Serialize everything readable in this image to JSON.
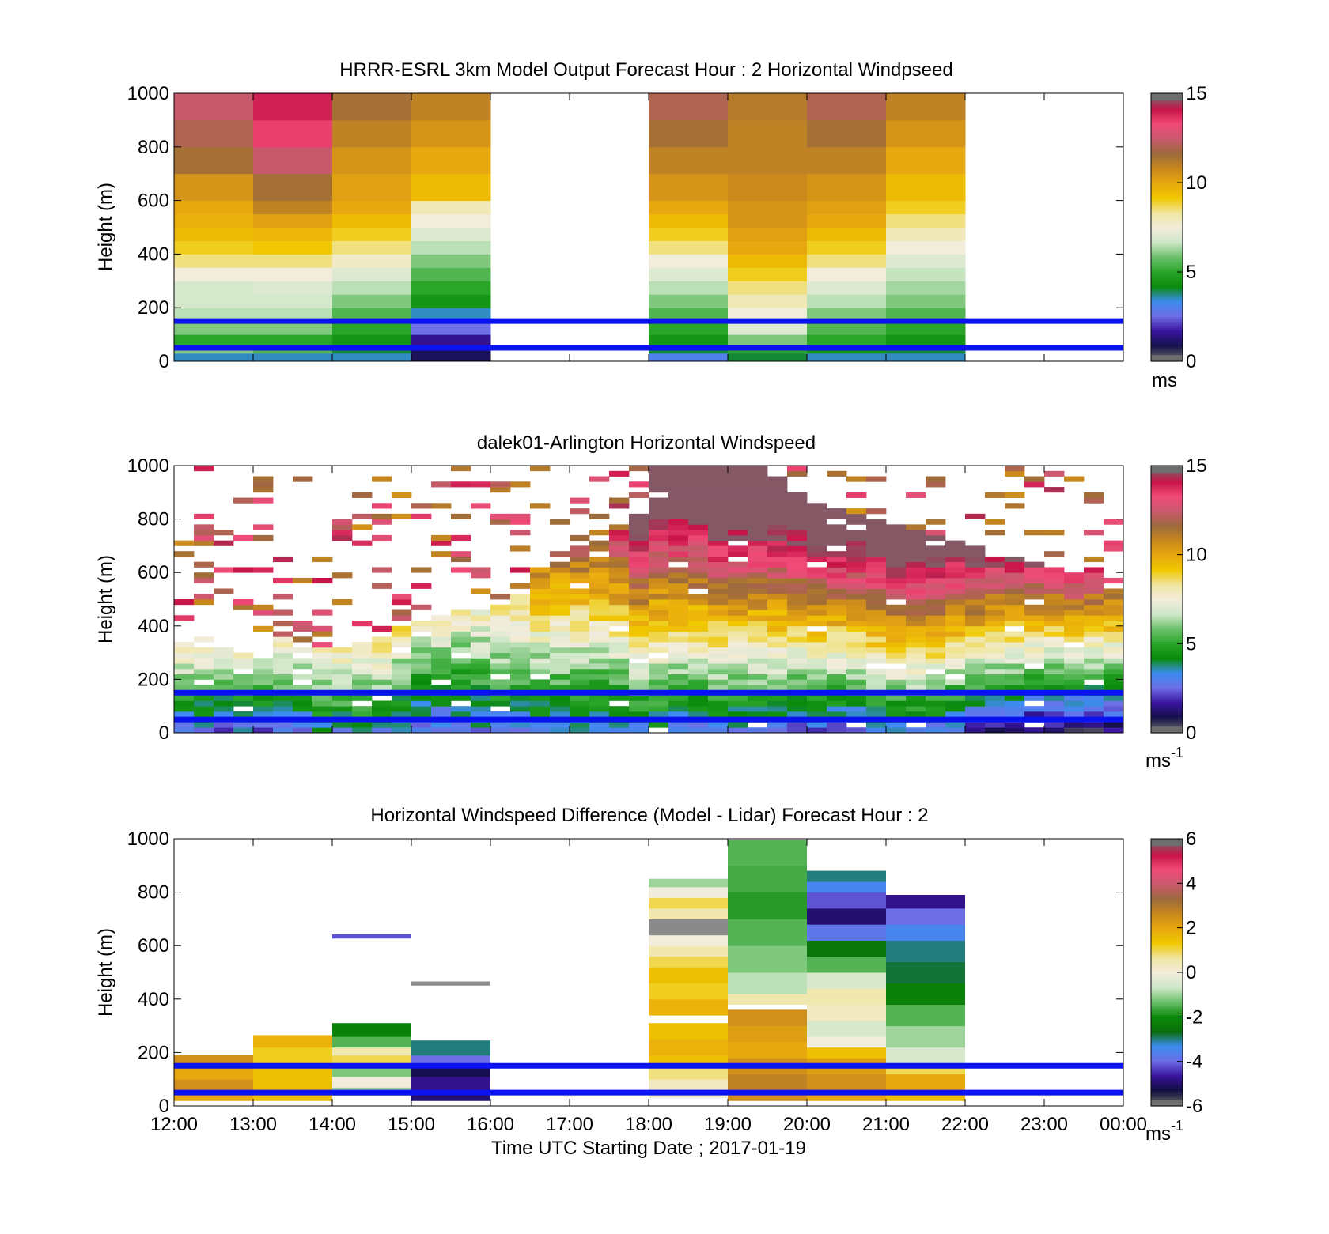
{
  "colors": {
    "threshold_line": "#0a12f0",
    "model_cmap": [
      "#6e6e6e",
      "#14104a",
      "#3a14a0",
      "#6e6ee6",
      "#3c8cf0",
      "#0a8a0a",
      "#2aa52a",
      "#6cc06c",
      "#cfe7c8",
      "#f2ecdc",
      "#f0e6a0",
      "#f0c800",
      "#e8a810",
      "#c8881e",
      "#9c6a3c",
      "#c85a6e",
      "#f04a78",
      "#c81448",
      "#6e6e6e"
    ],
    "diff_cmap": [
      "#6e6e6e",
      "#0e0c3c",
      "#3a14a0",
      "#6e6ee6",
      "#3c8cf0",
      "#0a6e0a",
      "#0a8a0a",
      "#6cc06c",
      "#cfe7c8",
      "#f2ecdc",
      "#f0e6a0",
      "#f0c800",
      "#e8a810",
      "#c8881e",
      "#9c6a3c",
      "#c85a6e",
      "#f04a78",
      "#c81448",
      "#6e6e6e"
    ]
  },
  "chart_data": [
    {
      "type": "heatmap",
      "title": "HRRR-ESRL 3km Model Output   Forecast Hour : 2 Horizontal Windpseed",
      "xlabel": "",
      "ylabel": "Height (m)",
      "ylim": [
        0,
        1000
      ],
      "yticks": [
        "0",
        "200",
        "400",
        "600",
        "800",
        "1000"
      ],
      "xticks_hours": [
        12,
        13,
        14,
        15,
        16,
        17,
        18,
        19,
        20,
        21,
        22,
        23,
        24
      ],
      "xlim_hours": [
        12,
        24
      ],
      "clim": [
        0,
        15
      ],
      "cbar_ticks": [
        "0",
        "5",
        "10",
        "15"
      ],
      "cbar_unit": "ms",
      "threshold_lines_m": [
        50,
        150
      ],
      "hour_columns_start": [
        12,
        13,
        14,
        15,
        18,
        19,
        20,
        21
      ],
      "height_bins_m": [
        0,
        30,
        50,
        100,
        150,
        200,
        250,
        300,
        350,
        400,
        450,
        500,
        550,
        600,
        700,
        800,
        900,
        1000
      ],
      "speed_profiles_ms": [
        [
          3.5,
          6.0,
          5.0,
          6.0,
          6.5,
          6.8,
          6.8,
          7.5,
          8.5,
          9.0,
          9.5,
          9.8,
          10.0,
          10.5,
          11.5,
          12.0,
          12.5
        ],
        [
          3.5,
          5.5,
          5.0,
          6.0,
          6.5,
          6.8,
          7.0,
          7.5,
          8.5,
          9.2,
          9.6,
          10.2,
          11.0,
          11.5,
          12.5,
          13.5,
          14.0
        ],
        [
          3.5,
          4.0,
          4.5,
          5.0,
          5.5,
          6.0,
          6.5,
          7.0,
          7.8,
          8.5,
          9.0,
          9.5,
          10.0,
          10.2,
          10.5,
          11.0,
          11.5
        ],
        [
          1.0,
          1.0,
          1.5,
          2.5,
          3.5,
          4.5,
          5.0,
          5.5,
          6.0,
          6.5,
          7.0,
          7.5,
          8.0,
          9.5,
          10.0,
          10.5,
          11.0
        ],
        [
          3.0,
          4.0,
          4.5,
          5.0,
          5.5,
          6.0,
          6.5,
          7.0,
          7.5,
          8.5,
          9.0,
          9.5,
          10.0,
          10.5,
          11.0,
          11.5,
          12.0
        ],
        [
          4.0,
          5.0,
          6.0,
          7.0,
          7.5,
          8.0,
          8.5,
          9.0,
          9.5,
          10.0,
          10.2,
          10.5,
          10.5,
          10.8,
          11.0,
          11.0,
          11.2
        ],
        [
          3.5,
          4.5,
          5.0,
          5.5,
          6.0,
          6.5,
          7.0,
          7.5,
          8.5,
          9.0,
          9.5,
          10.0,
          10.2,
          10.5,
          11.0,
          11.5,
          12.0
        ],
        [
          3.5,
          4.0,
          4.5,
          5.0,
          5.5,
          6.0,
          6.3,
          6.6,
          7.0,
          7.5,
          8.0,
          8.5,
          9.0,
          9.5,
          10.0,
          10.5,
          11.0
        ]
      ]
    },
    {
      "type": "heatmap",
      "title": "dalek01-Arlington  Horizontal Windspeed",
      "xlabel": "",
      "ylabel": "Height (m)",
      "ylim": [
        0,
        1000
      ],
      "yticks": [
        "0",
        "200",
        "400",
        "600",
        "800",
        "1000"
      ],
      "xticks_hours": [
        12,
        13,
        14,
        15,
        16,
        17,
        18,
        19,
        20,
        21,
        22,
        23,
        24
      ],
      "xlim_hours": [
        12,
        24
      ],
      "clim": [
        0,
        15
      ],
      "cbar_ticks": [
        "0",
        "5",
        "10",
        "15"
      ],
      "cbar_unit": "ms",
      "cbar_unit_sup": "-1",
      "threshold_lines_m": [
        50,
        150
      ],
      "time_step_hours": 0.25,
      "height_step_m": 20,
      "data_top_m": [
        340,
        360,
        320,
        300,
        280,
        360,
        320,
        320,
        320,
        340,
        360,
        400,
        420,
        440,
        460,
        460,
        480,
        520,
        620,
        640,
        680,
        720,
        760,
        820,
        1000,
        1000,
        1000,
        1000,
        1000,
        1000,
        960,
        900,
        860,
        840,
        820,
        800,
        780,
        760,
        740,
        720,
        700,
        680,
        660,
        640,
        620,
        600,
        620,
        600
      ],
      "surface_speed_ms": [
        3.0,
        3.0,
        2.5,
        3.0,
        2.5,
        3.0,
        3.0,
        3.5,
        3.5,
        3.5,
        3.5,
        3.0,
        2.5,
        2.5,
        2.5,
        3.0,
        3.0,
        3.0,
        3.0,
        3.0,
        3.0,
        3.0,
        3.0,
        3.5,
        3.5,
        3.0,
        3.0,
        3.0,
        3.0,
        3.0,
        3.0,
        2.5,
        2.5,
        2.5,
        2.5,
        3.0,
        3.0,
        3.0,
        3.0,
        2.5,
        2.0,
        1.5,
        1.5,
        1.0,
        1.0,
        1.0,
        1.0,
        1.0
      ],
      "speed_gradient_ms_per_100m": [
        1.6,
        1.5,
        1.6,
        1.7,
        1.7,
        1.5,
        1.6,
        1.6,
        1.6,
        1.5,
        1.5,
        1.4,
        1.3,
        1.3,
        1.2,
        1.1,
        1.2,
        1.2,
        1.3,
        1.3,
        1.3,
        1.3,
        1.4,
        1.5,
        1.4,
        1.5,
        1.5,
        1.6,
        1.6,
        1.6,
        1.6,
        1.7,
        1.8,
        1.8,
        1.8,
        1.8,
        1.9,
        1.9,
        1.9,
        1.9,
        2.0,
        2.0,
        2.0,
        2.1,
        2.1,
        2.2,
        2.1,
        2.1
      ]
    },
    {
      "type": "heatmap",
      "title": "Horizontal Windspeed Difference (Model - Lidar) Forecast Hour : 2",
      "xlabel": "Time UTC  Starting Date ; 2017-01-19",
      "ylabel": "Height (m)",
      "ylim": [
        0,
        1000
      ],
      "yticks": [
        "0",
        "200",
        "400",
        "600",
        "800",
        "1000"
      ],
      "xtick_labels": [
        "12:00",
        "13:00",
        "14:00",
        "15:00",
        "16:00",
        "17:00",
        "18:00",
        "19:00",
        "20:00",
        "21:00",
        "22:00",
        "23:00",
        "00:00"
      ],
      "xticks_hours": [
        12,
        13,
        14,
        15,
        16,
        17,
        18,
        19,
        20,
        21,
        22,
        23,
        24
      ],
      "xlim_hours": [
        12,
        24
      ],
      "clim": [
        -6,
        6
      ],
      "cbar_ticks": [
        "-6",
        "-4",
        "-2",
        "0",
        "2",
        "4",
        "6"
      ],
      "cbar_unit": "ms",
      "cbar_unit_sup": "-1",
      "threshold_lines_m": [
        50,
        150
      ],
      "segments": [
        {
          "h0": 12,
          "h1": 13,
          "bins": [
            [
              20,
              60,
              2.0
            ],
            [
              60,
              100,
              2.5
            ],
            [
              100,
              150,
              2.0
            ],
            [
              150,
              190,
              2.5
            ]
          ]
        },
        {
          "h0": 13,
          "h1": 14,
          "bins": [
            [
              20,
              60,
              1.5
            ],
            [
              60,
              150,
              1.5
            ],
            [
              150,
              220,
              1.2
            ],
            [
              220,
              265,
              1.8
            ]
          ]
        },
        {
          "h0": 14,
          "h1": 15,
          "bins": [
            [
              40,
              70,
              -1.0
            ],
            [
              70,
              110,
              0.0
            ],
            [
              110,
              150,
              -1.2
            ],
            [
              150,
              190,
              1.0
            ],
            [
              190,
              220,
              0.5
            ],
            [
              220,
              260,
              -1.5
            ],
            [
              260,
              310,
              -2.2
            ]
          ]
        },
        {
          "h0": 14,
          "h1": 15,
          "bins": [
            [
              628,
              642,
              -4.2
            ]
          ]
        },
        {
          "h0": 15,
          "h1": 16,
          "bins": [
            [
              20,
              60,
              -5.0
            ],
            [
              60,
              110,
              -4.8
            ],
            [
              110,
              150,
              -5.2
            ],
            [
              150,
              190,
              -4.0
            ],
            [
              190,
              245,
              -3.0
            ]
          ]
        },
        {
          "h0": 15,
          "h1": 16,
          "bins": [
            [
              452,
              466,
              99
            ]
          ]
        },
        {
          "h0": 18,
          "h1": 19,
          "bins": [
            [
              30,
              60,
              0.0
            ],
            [
              60,
              100,
              0.3
            ],
            [
              100,
              150,
              0.8
            ],
            [
              150,
              190,
              1.5
            ],
            [
              190,
              250,
              1.8
            ],
            [
              250,
              310,
              1.5
            ],
            [
              340,
              400,
              1.8
            ],
            [
              400,
              460,
              1.2
            ],
            [
              460,
              520,
              1.5
            ],
            [
              520,
              560,
              1.0
            ],
            [
              560,
              600,
              0.5
            ],
            [
              600,
              640,
              0.0
            ],
            [
              640,
              700,
              99
            ],
            [
              700,
              740,
              0.5
            ],
            [
              740,
              780,
              1.0
            ],
            [
              780,
              820,
              0.0
            ],
            [
              820,
              850,
              -1.0
            ]
          ]
        },
        {
          "h0": 19,
          "h1": 20,
          "bins": [
            [
              20,
              60,
              2.5
            ],
            [
              60,
              120,
              2.8
            ],
            [
              120,
              180,
              2.5
            ],
            [
              180,
              240,
              2.0
            ],
            [
              240,
              300,
              2.2
            ],
            [
              300,
              360,
              2.5
            ],
            [
              380,
              420,
              0.5
            ],
            [
              420,
              500,
              -0.8
            ],
            [
              500,
              600,
              -1.2
            ],
            [
              600,
              700,
              -1.5
            ],
            [
              700,
              800,
              -1.8
            ],
            [
              800,
              900,
              -1.6
            ],
            [
              900,
              995,
              -1.5
            ]
          ]
        },
        {
          "h0": 20,
          "h1": 21,
          "bins": [
            [
              20,
              60,
              2.0
            ],
            [
              60,
              120,
              2.5
            ],
            [
              120,
              180,
              2.2
            ],
            [
              180,
              220,
              1.5
            ],
            [
              220,
              260,
              0.0
            ],
            [
              260,
              320,
              -0.5
            ],
            [
              320,
              380,
              0.3
            ],
            [
              380,
              440,
              0.5
            ],
            [
              440,
              500,
              -0.5
            ],
            [
              500,
              560,
              -1.5
            ],
            [
              560,
              620,
              -2.5
            ],
            [
              620,
              680,
              -3.8
            ],
            [
              680,
              740,
              -5.0
            ],
            [
              740,
              800,
              -4.2
            ],
            [
              800,
              840,
              -3.5
            ],
            [
              840,
              880,
              -3.0
            ]
          ]
        },
        {
          "h0": 21,
          "h1": 22,
          "bins": [
            [
              20,
              60,
              1.5
            ],
            [
              60,
              120,
              2.0
            ],
            [
              120,
              160,
              1.0
            ],
            [
              160,
              220,
              -0.5
            ],
            [
              220,
              300,
              -1.0
            ],
            [
              300,
              380,
              -1.5
            ],
            [
              380,
              460,
              -2.2
            ],
            [
              460,
              540,
              -2.8
            ],
            [
              540,
              620,
              -3.0
            ],
            [
              620,
              680,
              -3.5
            ],
            [
              680,
              740,
              -4.0
            ],
            [
              740,
              790,
              -4.8
            ]
          ]
        }
      ]
    }
  ]
}
